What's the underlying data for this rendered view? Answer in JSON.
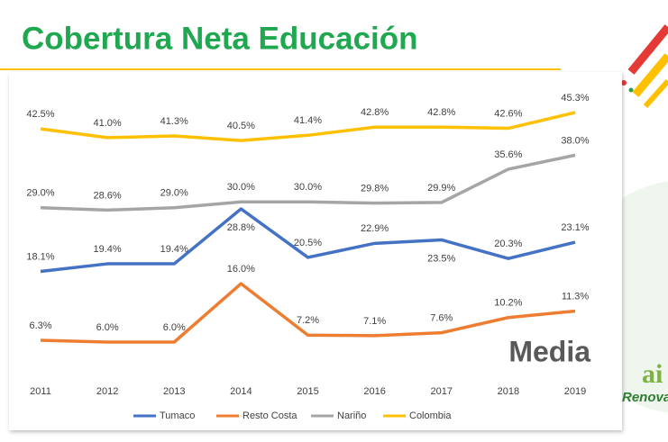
{
  "header": {
    "title": "Cobertura Neta Educación"
  },
  "chart_data": {
    "type": "line",
    "categories": [
      "2011",
      "2012",
      "2013",
      "2014",
      "2015",
      "2016",
      "2017",
      "2018",
      "2019"
    ],
    "series": [
      {
        "name": "Tumaco",
        "color": "#4472c4",
        "values": [
          18.1,
          19.4,
          19.4,
          28.8,
          20.5,
          22.9,
          23.5,
          20.3,
          23.1
        ],
        "value_labels": [
          "18.1%",
          "19.4%",
          "19.4%",
          "28.8%",
          "20.5%",
          "22.9%",
          "23.5%",
          "20.3%",
          "23.1%"
        ]
      },
      {
        "name": "Resto Costa",
        "color": "#ed7d31",
        "values": [
          6.3,
          6.0,
          6.0,
          16.0,
          7.2,
          7.1,
          7.6,
          10.2,
          11.3
        ],
        "value_labels": [
          "6.3%",
          "6.0%",
          "6.0%",
          "16.0%",
          "7.2%",
          "7.1%",
          "7.6%",
          "10.2%",
          "11.3%"
        ]
      },
      {
        "name": "Nariño",
        "color": "#a5a5a5",
        "values": [
          29.0,
          28.6,
          29.0,
          30.0,
          30.0,
          29.8,
          29.9,
          35.6,
          38.0
        ],
        "value_labels": [
          "29.0%",
          "28.6%",
          "29.0%",
          "30.0%",
          "30.0%",
          "29.8%",
          "29.9%",
          "35.6%",
          "38.0%"
        ]
      },
      {
        "name": "Colombia",
        "color": "#ffc000",
        "values": [
          42.5,
          41.0,
          41.3,
          40.5,
          41.4,
          42.8,
          42.8,
          42.6,
          45.3
        ],
        "value_labels": [
          "42.5%",
          "41.0%",
          "41.3%",
          "40.5%",
          "41.4%",
          "42.8%",
          "42.8%",
          "42.6%",
          "45.3%"
        ]
      }
    ],
    "annotation": "Media",
    "legend": "bottom"
  },
  "logo": {
    "mark": "ai",
    "text": "Renovac"
  }
}
